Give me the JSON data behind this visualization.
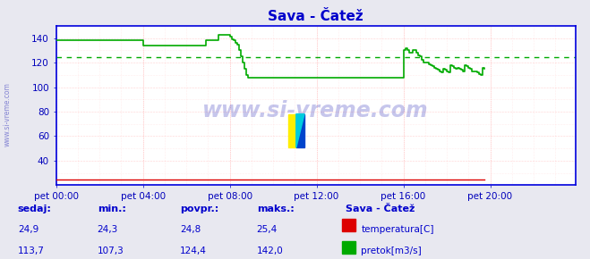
{
  "title": "Sava - Čatež",
  "bg_color": "#e8e8f0",
  "plot_bg_color": "#ffffff",
  "grid_color": "#ffaaaa",
  "grid_minor_color": "#ffdddd",
  "xlim": [
    0,
    287
  ],
  "ylim": [
    20,
    150
  ],
  "yticks": [
    40,
    60,
    80,
    100,
    120,
    140
  ],
  "xtick_labels": [
    "pet 00:00",
    "pet 04:00",
    "pet 08:00",
    "pet 12:00",
    "pet 16:00",
    "pet 20:00"
  ],
  "xtick_positions": [
    0,
    48,
    96,
    144,
    192,
    240
  ],
  "avg_line_y": 124.4,
  "temp_color": "#dd0000",
  "flow_color": "#00aa00",
  "title_color": "#0000cc",
  "tick_color": "#0000bb",
  "spine_color": "#0000dd",
  "arrow_color": "#cc0000",
  "watermark_text": "www.si-vreme.com",
  "watermark_color": "#3333bb",
  "sidebar_text": "www.si-vreme.com",
  "temp_value": "24,9",
  "temp_min": "24,3",
  "temp_avg": "24,8",
  "temp_max": "25,4",
  "flow_value": "113,7",
  "flow_min": "107,3",
  "flow_avg": "124,4",
  "flow_max": "142,0",
  "legend_title": "Sava - Čatež",
  "temp_label": "temperatura[C]",
  "flow_label": "pretok[m3/s]",
  "table_headers": [
    "sedaj:",
    "min.:",
    "povpr.:",
    "maks.:"
  ],
  "temp_data_y": 24.9,
  "flow_data": [
    138,
    138,
    138,
    138,
    138,
    138,
    138,
    138,
    138,
    138,
    138,
    138,
    138,
    138,
    138,
    138,
    138,
    138,
    138,
    138,
    138,
    138,
    138,
    138,
    138,
    138,
    138,
    138,
    138,
    138,
    138,
    138,
    138,
    138,
    138,
    138,
    138,
    138,
    138,
    138,
    138,
    138,
    138,
    138,
    138,
    138,
    138,
    138,
    134,
    134,
    134,
    134,
    134,
    134,
    134,
    134,
    134,
    134,
    134,
    134,
    134,
    134,
    134,
    134,
    134,
    134,
    134,
    134,
    134,
    134,
    134,
    134,
    134,
    134,
    134,
    134,
    134,
    134,
    134,
    134,
    134,
    134,
    134,
    138,
    138,
    138,
    138,
    138,
    138,
    138,
    143,
    143,
    143,
    143,
    143,
    143,
    141,
    139,
    138,
    136,
    135,
    130,
    125,
    120,
    115,
    110,
    108,
    108,
    108,
    108,
    108,
    108,
    108,
    108,
    108,
    108,
    108,
    108,
    108,
    108,
    108,
    108,
    108,
    108,
    108,
    108,
    108,
    108,
    108,
    108,
    108,
    108,
    108,
    108,
    108,
    108,
    108,
    108,
    108,
    108,
    108,
    108,
    108,
    108,
    108,
    108,
    108,
    108,
    108,
    108,
    108,
    108,
    108,
    108,
    108,
    108,
    108,
    108,
    108,
    108,
    108,
    108,
    108,
    108,
    108,
    108,
    108,
    108,
    108,
    108,
    108,
    108,
    108,
    108,
    108,
    108,
    108,
    108,
    108,
    108,
    108,
    108,
    108,
    108,
    108,
    108,
    108,
    108,
    108,
    108,
    108,
    108,
    130,
    132,
    130,
    128,
    128,
    130,
    130,
    128,
    126,
    125,
    122,
    120,
    120,
    120,
    119,
    118,
    117,
    116,
    115,
    114,
    113,
    112,
    115,
    114,
    113,
    112,
    118,
    117,
    116,
    115,
    116,
    115,
    114,
    113,
    118,
    117,
    116,
    115,
    113,
    113,
    113,
    112,
    111,
    110,
    116,
    115
  ]
}
